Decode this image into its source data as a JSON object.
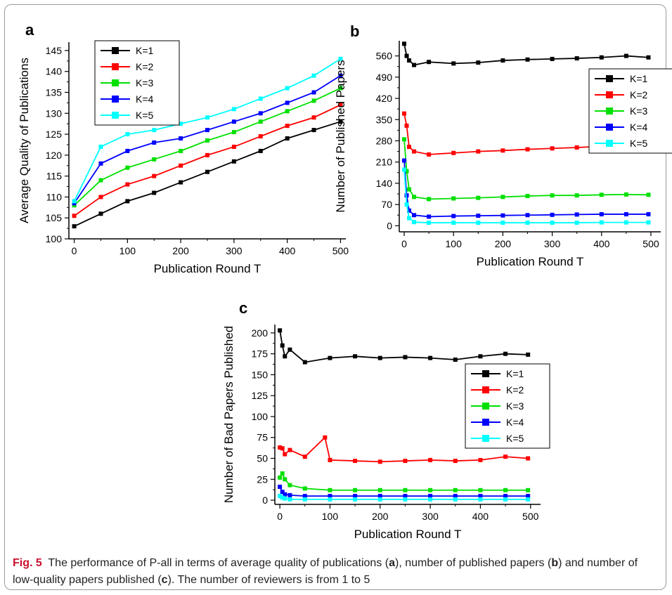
{
  "caption": {
    "fig_label": "Fig. 5",
    "pre_a": "The performance of P-all in terms of average quality of publications (",
    "a": "a",
    "mid_ab": "), number of published papers (",
    "b": "b",
    "mid_bc": ") and number of low-quality papers published (",
    "c": "c",
    "post_c": "). The number of reviewers is from 1 to 5"
  },
  "chart_data": [
    {
      "id": "a",
      "panel_label": "a",
      "type": "line",
      "xlabel": "Publication Round T",
      "ylabel": "Average Quality of Publications",
      "xlim": [
        -10,
        510
      ],
      "ylim": [
        100,
        147
      ],
      "xticks": [
        0,
        100,
        200,
        300,
        400,
        500
      ],
      "yticks": [
        100,
        105,
        110,
        115,
        120,
        125,
        130,
        135,
        140,
        145
      ],
      "legend_position": "top-left",
      "series": [
        {
          "name": "K=1",
          "color": "#000000",
          "x": [
            0,
            50,
            100,
            150,
            200,
            250,
            300,
            350,
            400,
            450,
            500
          ],
          "y": [
            103,
            106,
            109,
            111,
            113.5,
            116,
            118.5,
            121,
            124,
            126,
            128
          ]
        },
        {
          "name": "K=2",
          "color": "#ff0000",
          "x": [
            0,
            50,
            100,
            150,
            200,
            250,
            300,
            350,
            400,
            450,
            500
          ],
          "y": [
            105.5,
            110,
            113,
            115,
            117.5,
            120,
            122,
            124.5,
            127,
            129,
            132
          ]
        },
        {
          "name": "K=3",
          "color": "#00e000",
          "x": [
            0,
            50,
            100,
            150,
            200,
            250,
            300,
            350,
            400,
            450,
            500
          ],
          "y": [
            108,
            114,
            117,
            119,
            121,
            123.5,
            125.5,
            128,
            130.5,
            133,
            136
          ]
        },
        {
          "name": "K=4",
          "color": "#0000ff",
          "x": [
            0,
            50,
            100,
            150,
            200,
            250,
            300,
            350,
            400,
            450,
            500
          ],
          "y": [
            108.5,
            118,
            121,
            123,
            124,
            126,
            128,
            130,
            132.5,
            135,
            139
          ]
        },
        {
          "name": "K=5",
          "color": "#00ffff",
          "x": [
            0,
            50,
            100,
            150,
            200,
            250,
            300,
            350,
            400,
            450,
            500
          ],
          "y": [
            109,
            122,
            125,
            126,
            127.5,
            129,
            131,
            133.5,
            136,
            139,
            143
          ]
        }
      ]
    },
    {
      "id": "b",
      "panel_label": "b",
      "type": "line",
      "xlabel": "Publication Round T",
      "ylabel": "Number of Published Papers",
      "xlim": [
        -10,
        520
      ],
      "ylim": [
        -20,
        610
      ],
      "xticks": [
        0,
        100,
        200,
        300,
        400,
        500
      ],
      "yticks": [
        0,
        70,
        140,
        210,
        280,
        350,
        420,
        490,
        560
      ],
      "legend_position": "right",
      "series": [
        {
          "name": "K=1",
          "color": "#000000",
          "x": [
            0,
            5,
            10,
            20,
            50,
            100,
            150,
            200,
            250,
            300,
            350,
            400,
            450,
            495
          ],
          "y": [
            600,
            560,
            545,
            530,
            540,
            535,
            538,
            545,
            548,
            550,
            552,
            555,
            560,
            555
          ]
        },
        {
          "name": "K=2",
          "color": "#ff0000",
          "x": [
            0,
            5,
            10,
            20,
            50,
            100,
            150,
            200,
            250,
            300,
            350,
            400,
            450,
            495
          ],
          "y": [
            370,
            330,
            260,
            245,
            235,
            240,
            245,
            248,
            252,
            255,
            258,
            262,
            265,
            262
          ]
        },
        {
          "name": "K=3",
          "color": "#00e000",
          "x": [
            0,
            5,
            10,
            20,
            50,
            100,
            150,
            200,
            250,
            300,
            350,
            400,
            450,
            495
          ],
          "y": [
            285,
            180,
            120,
            95,
            88,
            90,
            92,
            95,
            98,
            100,
            100,
            102,
            103,
            102
          ]
        },
        {
          "name": "K=4",
          "color": "#0000ff",
          "x": [
            0,
            5,
            10,
            20,
            50,
            100,
            150,
            200,
            250,
            300,
            350,
            400,
            450,
            495
          ],
          "y": [
            215,
            100,
            50,
            35,
            30,
            32,
            33,
            34,
            35,
            36,
            37,
            38,
            38,
            38
          ]
        },
        {
          "name": "K=5",
          "color": "#00ffff",
          "x": [
            0,
            5,
            10,
            20,
            50,
            100,
            150,
            200,
            250,
            300,
            350,
            400,
            450,
            495
          ],
          "y": [
            185,
            70,
            25,
            12,
            10,
            10,
            10,
            10,
            10,
            10,
            10,
            11,
            11,
            11
          ]
        }
      ]
    },
    {
      "id": "c",
      "panel_label": "c",
      "type": "line",
      "xlabel": "Publication Round T",
      "ylabel": "Number of Bad Papers Published",
      "xlim": [
        -10,
        520
      ],
      "ylim": [
        -5,
        210
      ],
      "xticks": [
        0,
        100,
        200,
        300,
        400,
        500
      ],
      "yticks": [
        0,
        25,
        50,
        75,
        100,
        125,
        150,
        175,
        200
      ],
      "legend_position": "right",
      "series": [
        {
          "name": "K=1",
          "color": "#000000",
          "x": [
            0,
            5,
            10,
            20,
            50,
            100,
            150,
            200,
            250,
            300,
            350,
            400,
            450,
            495
          ],
          "y": [
            203,
            185,
            172,
            180,
            165,
            170,
            172,
            170,
            171,
            170,
            168,
            172,
            175,
            174
          ]
        },
        {
          "name": "K=2",
          "color": "#ff0000",
          "x": [
            0,
            5,
            10,
            20,
            50,
            90,
            100,
            150,
            200,
            250,
            300,
            350,
            400,
            450,
            495
          ],
          "y": [
            63,
            62,
            55,
            60,
            52,
            75,
            48,
            47,
            46,
            47,
            48,
            47,
            48,
            52,
            50
          ]
        },
        {
          "name": "K=3",
          "color": "#00e000",
          "x": [
            0,
            5,
            10,
            20,
            50,
            100,
            150,
            200,
            250,
            300,
            350,
            400,
            450,
            495
          ],
          "y": [
            27,
            32,
            25,
            18,
            14,
            12,
            12,
            12,
            12,
            12,
            12,
            12,
            12,
            12
          ]
        },
        {
          "name": "K=4",
          "color": "#0000ff",
          "x": [
            0,
            5,
            10,
            20,
            50,
            100,
            150,
            200,
            250,
            300,
            350,
            400,
            450,
            495
          ],
          "y": [
            16,
            10,
            7,
            6,
            5,
            5,
            5,
            5,
            5,
            5,
            5,
            5,
            5,
            5
          ]
        },
        {
          "name": "K=5",
          "color": "#00ffff",
          "x": [
            0,
            5,
            10,
            20,
            50,
            100,
            150,
            200,
            250,
            300,
            350,
            400,
            450,
            495
          ],
          "y": [
            5,
            3,
            2,
            1,
            1,
            1,
            1,
            1,
            1,
            1,
            1,
            1,
            1,
            1
          ]
        }
      ]
    }
  ]
}
